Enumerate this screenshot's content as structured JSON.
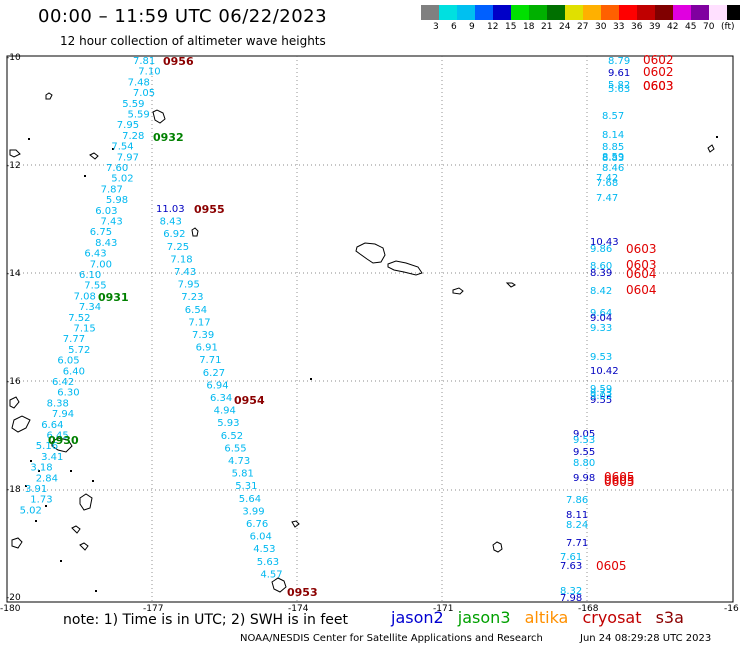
{
  "header": {
    "title": "00:00 – 11:59 UTC 06/22/2023",
    "subtitle": "12 hour collection of altimeter wave heights"
  },
  "scale": {
    "colors": [
      "#808080",
      "#00e0e0",
      "#00c0f0",
      "#0060ff",
      "#0000c8",
      "#00e000",
      "#00b000",
      "#007000",
      "#e0e000",
      "#ffb000",
      "#ff6000",
      "#ff0000",
      "#c00000",
      "#800000",
      "#e000e0",
      "#8000a0",
      "#ffe0ff",
      "#000000"
    ],
    "labels": [
      "3",
      "6",
      "9",
      "12",
      "15",
      "18",
      "21",
      "24",
      "27",
      "30",
      "33",
      "36",
      "39",
      "42",
      "45",
      "70",
      "(ft)"
    ]
  },
  "axes": {
    "lat_labels": [
      "-10",
      "-12",
      "-14",
      "-16",
      "-18",
      "-20"
    ],
    "lon_labels": [
      "-180",
      "-177",
      "-174",
      "-171",
      "-168",
      "-16"
    ]
  },
  "note": "note: 1) Time is in UTC; 2) SWH is in feet",
  "legend": [
    {
      "name": "jason2",
      "color": "#0000d0"
    },
    {
      "name": "jason3",
      "color": "#00a000"
    },
    {
      "name": "altika",
      "color": "#ff9000"
    },
    {
      "name": "cryosat",
      "color": "#c00000"
    },
    {
      "name": "s3a",
      "color": "#8b0000"
    }
  ],
  "credit": "NOAA/NESDIS Center for Satellite Applications and Research",
  "credit_date": "Jun 24 08:29:28 UTC 2023",
  "colors": {
    "cyan": "#00b8f0",
    "navy": "#0000c0",
    "red": "#e00000",
    "darkred": "#8b0000",
    "green": "#008000",
    "gray": "#707070"
  },
  "tracks": [
    {
      "name": "track-0956",
      "label": "0956",
      "label_color": "darkred",
      "values": [
        "7.81",
        "7.10",
        "7.48",
        "7.05",
        "5.59",
        "5.59",
        "7.95",
        "7.28",
        "7.54",
        "7.97",
        "7.60",
        "5.02",
        "7.87",
        "5.98",
        "6.03",
        "7.43",
        "6.75",
        "8.43",
        "6.43",
        "7.00",
        "6.10",
        "7.55",
        "7.08"
      ]
    },
    {
      "name": "track-0932",
      "label": "0932",
      "label_color": "green",
      "values": []
    },
    {
      "name": "track-0955",
      "label": "0955",
      "label_color": "darkred",
      "values": [
        "11.03",
        "8.43",
        "6.92",
        "7.25",
        "7.18",
        "7.43",
        "7.95",
        "7.23",
        "6.54",
        "7.17",
        "7.39",
        "6.91",
        "7.71",
        "6.27",
        "6.94",
        "6.34",
        "4.94",
        "5.93",
        "6.52",
        "6.55",
        "4.73",
        "5.81",
        "5.31",
        "5.64",
        "3.99",
        "6.76",
        "6.04",
        "4.53",
        "5.63",
        "4.57"
      ]
    },
    {
      "name": "track-0954",
      "label": "0954",
      "label_color": "darkred",
      "values": []
    },
    {
      "name": "track-0953",
      "label": "0953",
      "label_color": "darkred",
      "values": []
    },
    {
      "name": "track-0931",
      "label": "0931",
      "label_color": "green",
      "values": [
        "7.34",
        "7.52",
        "7.15",
        "7.77",
        "5.72",
        "6.05",
        "6.40",
        "6.42",
        "6.30",
        "8.38",
        "7.94",
        "6.64",
        "6.45",
        "5.16",
        "3.41",
        "3.18",
        "2.84",
        "3.91",
        "1.73",
        "5.02"
      ]
    },
    {
      "name": "track-0930",
      "label": "0930",
      "label_color": "green",
      "values": []
    },
    {
      "name": "track-0602",
      "labels": [
        "0602",
        "0602",
        "0603",
        "0603"
      ],
      "values": [
        "8.79",
        "9.61",
        "5.82",
        "5.63",
        "8.57",
        "8.14",
        "8.85",
        "8.59",
        "8.83",
        "8.46",
        "7.42",
        "7.68",
        "7.47"
      ]
    },
    {
      "name": "track-0603",
      "labels": [
        "0603",
        "0603",
        "0604",
        "0604"
      ],
      "values": [
        "10.43",
        "9.86",
        "8.60",
        "8.39",
        "8.42",
        "9.64",
        "9.04",
        "9.33",
        "9.53",
        "10.42",
        "9.59",
        "9.73",
        "9.55",
        "9.03"
      ]
    },
    {
      "name": "track-0605",
      "labels": [
        "0605",
        "0605",
        "0605",
        "0605"
      ],
      "values": [
        "9.05",
        "9.53",
        "9.55",
        "8.80",
        "9.98",
        "7.86",
        "8.11",
        "8.24",
        "7.71",
        "7.61",
        "7.63",
        "8.32",
        "7.98"
      ]
    }
  ]
}
